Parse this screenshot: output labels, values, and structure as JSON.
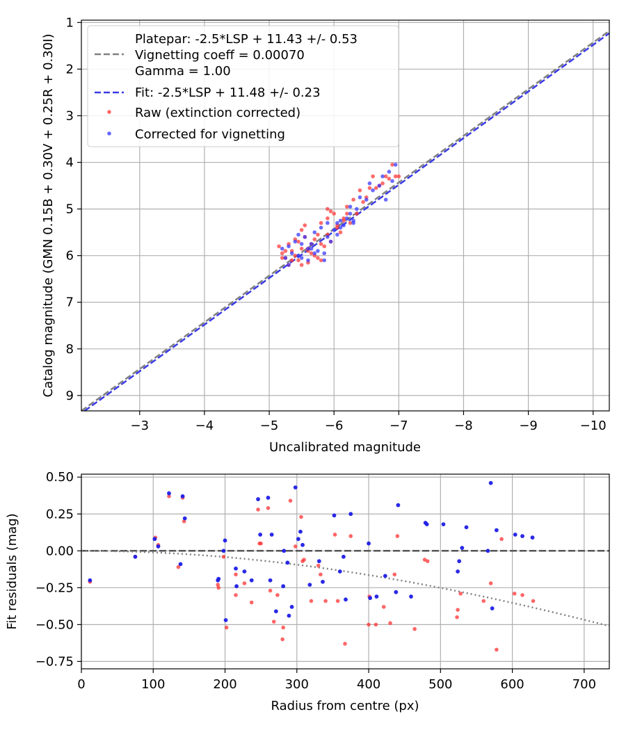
{
  "chart_data": [
    {
      "type": "scatter",
      "xlabel": "Uncalibrated magnitude",
      "ylabel": "Catalog magnitude (GMN 0.15B + 0.30V + 0.25R + 0.30I)",
      "xlim": [
        -2.1,
        -10.25
      ],
      "ylim": [
        9.33,
        0.95
      ],
      "x_ticks": [
        -3,
        -4,
        -5,
        -6,
        -7,
        -8,
        -9,
        -10
      ],
      "x_tick_labels": [
        "−3",
        "−4",
        "−5",
        "−6",
        "−7",
        "−8",
        "−9",
        "−10"
      ],
      "y_ticks": [
        1,
        2,
        3,
        4,
        5,
        6,
        7,
        8,
        9
      ],
      "y_tick_labels": [
        "1",
        "2",
        "3",
        "4",
        "5",
        "6",
        "7",
        "8",
        "9"
      ],
      "grid": true,
      "legend_position": "top-left",
      "legend": [
        {
          "label": "Platepar: -2.5*LSP + 11.43 +/- 0.53"
        },
        {
          "label": "Vignetting coeff = 0.00070"
        },
        {
          "label": "Gamma = 1.00"
        },
        {
          "label": "Fit: -2.5*LSP + 11.48 +/- 0.23"
        },
        {
          "label": "Raw (extinction corrected)"
        },
        {
          "label": "Corrected for vignetting"
        }
      ],
      "lines": [
        {
          "name": "Platepar",
          "slope": 1,
          "intercept": 11.43,
          "color": "#808080",
          "style": "dashed"
        },
        {
          "name": "Fit",
          "slope": 1,
          "intercept": 11.48,
          "color": "#3a3ae6",
          "style": "dashed"
        }
      ],
      "series": [
        {
          "name": "Raw (extinction corrected)",
          "color": "#ff3333",
          "x": [
            -5.15,
            -5.2,
            -5.25,
            -5.3,
            -5.35,
            -5.2,
            -5.4,
            -5.45,
            -5.3,
            -5.5,
            -5.55,
            -5.45,
            -5.6,
            -5.65,
            -5.5,
            -5.7,
            -5.75,
            -5.6,
            -5.8,
            -5.85,
            -5.7,
            -5.9,
            -5.95,
            -5.8,
            -6.0,
            -6.05,
            -5.9,
            -6.1,
            -6.15,
            -6.2,
            -6.25,
            -6.3,
            -6.35,
            -6.4,
            -6.5,
            -6.55,
            -6.6,
            -6.7,
            -6.75,
            -6.8,
            -6.85,
            -6.9,
            -6.95,
            -7.0,
            -5.4,
            -5.6,
            -5.75,
            -5.9,
            -6.05,
            -6.2,
            -5.25,
            -5.5,
            -5.65,
            -5.8,
            -6.15,
            -6.45,
            -6.65,
            -5.35,
            -5.55,
            -5.95
          ],
          "y": [
            5.8,
            6.05,
            5.9,
            5.75,
            6.1,
            5.95,
            6.0,
            5.7,
            6.2,
            5.85,
            5.6,
            6.1,
            5.9,
            5.75,
            5.45,
            6.0,
            5.55,
            6.15,
            5.3,
            5.8,
            5.65,
            5.2,
            5.7,
            6.1,
            5.1,
            5.35,
            5.0,
            5.5,
            5.25,
            4.95,
            5.3,
            4.8,
            5.1,
            4.6,
            4.75,
            4.55,
            4.3,
            4.5,
            4.45,
            4.3,
            4.35,
            4.05,
            4.3,
            4.3,
            5.65,
            5.85,
            6.05,
            5.55,
            5.4,
            5.1,
            6.05,
            6.2,
            5.95,
            5.75,
            5.2,
            4.85,
            4.55,
            5.9,
            5.35,
            5.05
          ]
        },
        {
          "name": "Corrected for vignetting",
          "color": "#3333ff",
          "x": [
            -5.2,
            -5.25,
            -5.3,
            -5.35,
            -5.4,
            -5.45,
            -5.5,
            -5.55,
            -5.6,
            -5.65,
            -5.7,
            -5.75,
            -5.8,
            -5.85,
            -5.9,
            -5.95,
            -6.0,
            -6.05,
            -6.1,
            -6.15,
            -6.2,
            -6.25,
            -6.3,
            -6.35,
            -6.4,
            -6.5,
            -6.6,
            -6.7,
            -6.8,
            -6.85,
            -6.9,
            -6.95,
            -5.3,
            -5.5,
            -5.7,
            -5.9,
            -6.1,
            -6.3,
            -5.45,
            -5.65,
            -5.85,
            -6.05,
            -6.25,
            -6.55,
            -6.75,
            -5.6
          ],
          "y": [
            5.85,
            6.05,
            5.8,
            5.95,
            5.7,
            6.0,
            5.75,
            5.6,
            6.1,
            5.85,
            5.5,
            5.9,
            5.4,
            5.95,
            5.3,
            5.7,
            5.45,
            5.55,
            5.25,
            5.35,
            5.2,
            5.1,
            5.3,
            5.0,
            4.75,
            4.8,
            4.6,
            4.5,
            4.8,
            4.2,
            4.4,
            4.05,
            6.2,
            6.05,
            5.95,
            5.6,
            5.4,
            5.25,
            5.55,
            5.75,
            6.1,
            5.3,
            4.95,
            4.45,
            4.3,
            5.85
          ]
        }
      ]
    },
    {
      "type": "scatter",
      "xlabel": "Radius from centre (px)",
      "ylabel": "Fit residuals (mag)",
      "xlim": [
        0,
        735
      ],
      "ylim": [
        -0.8,
        0.52
      ],
      "x_ticks": [
        0,
        100,
        200,
        300,
        400,
        500,
        600,
        700
      ],
      "x_tick_labels": [
        "0",
        "100",
        "200",
        "300",
        "400",
        "500",
        "600",
        "700"
      ],
      "y_ticks": [
        0.5,
        0.25,
        0.0,
        -0.25,
        -0.5,
        -0.75
      ],
      "y_tick_labels": [
        "0.50",
        "0.25",
        "0.00",
        "−0.25",
        "−0.50",
        "−0.75"
      ],
      "grid": true,
      "zero_line": {
        "y": 0.0,
        "color": "#555555",
        "style": "dashed"
      },
      "vignetting_curve": {
        "coeff": 0.0007,
        "color": "#808080",
        "style": "dotted"
      },
      "series": [
        {
          "name": "Raw (extinction corrected)",
          "color": "#ff3333",
          "x": [
            12,
            75,
            103,
            107,
            122,
            135,
            141,
            143,
            190,
            191,
            198,
            202,
            215,
            215,
            227,
            237,
            246,
            248,
            250,
            260,
            263,
            268,
            273,
            280,
            281,
            291,
            298,
            306,
            308,
            310,
            320,
            330,
            333,
            340,
            353,
            357,
            367,
            375,
            400,
            401,
            410,
            421,
            430,
            436,
            440,
            464,
            478,
            482,
            523,
            524,
            528,
            560,
            570,
            578,
            585,
            603,
            614,
            629
          ],
          "y": [
            -0.21,
            -0.04,
            0.09,
            0.04,
            0.37,
            -0.11,
            0.36,
            0.2,
            -0.23,
            -0.25,
            -0.04,
            -0.52,
            -0.3,
            -0.16,
            -0.22,
            -0.35,
            0.28,
            0.05,
            0.05,
            0.29,
            -0.27,
            -0.48,
            -0.3,
            -0.6,
            -0.52,
            0.34,
            0.03,
            0.23,
            -0.07,
            -0.06,
            -0.34,
            -0.1,
            -0.16,
            -0.34,
            0.11,
            -0.34,
            -0.63,
            0.1,
            -0.5,
            -0.31,
            -0.5,
            -0.38,
            -0.49,
            -0.16,
            0.1,
            -0.53,
            -0.06,
            -0.07,
            -0.45,
            -0.4,
            -0.29,
            -0.34,
            -0.22,
            -0.67,
            0.08,
            -0.29,
            -0.3,
            -0.34
          ]
        },
        {
          "name": "Corrected for vignetting",
          "color": "#1e1ee6",
          "x": [
            12,
            75,
            102,
            107,
            122,
            138,
            141,
            144,
            190,
            191,
            198,
            200,
            201,
            215,
            216,
            227,
            237,
            246,
            249,
            260,
            263,
            265,
            271,
            281,
            282,
            287,
            289,
            293,
            298,
            302,
            305,
            308,
            318,
            331,
            336,
            352,
            360,
            365,
            368,
            375,
            400,
            402,
            411,
            423,
            438,
            441,
            459,
            479,
            481,
            504,
            524,
            526,
            530,
            536,
            566,
            570,
            572,
            578,
            604,
            614,
            628
          ],
          "y": [
            -0.2,
            -0.04,
            0.08,
            0.03,
            0.39,
            -0.09,
            0.37,
            0.22,
            -0.2,
            -0.19,
            0.0,
            0.07,
            -0.47,
            -0.12,
            -0.24,
            -0.14,
            -0.2,
            0.35,
            0.11,
            0.36,
            -0.2,
            0.11,
            -0.41,
            -0.24,
            0.0,
            -0.08,
            -0.44,
            -0.38,
            0.43,
            0.08,
            0.13,
            0.04,
            -0.23,
            -0.07,
            -0.21,
            0.24,
            -0.14,
            -0.04,
            -0.33,
            0.25,
            0.05,
            -0.32,
            -0.31,
            -0.17,
            -0.28,
            0.31,
            -0.31,
            0.19,
            0.18,
            0.18,
            -0.14,
            -0.07,
            0.02,
            0.16,
            0.0,
            0.46,
            -0.39,
            0.14,
            0.11,
            0.1,
            0.09
          ]
        }
      ]
    }
  ]
}
